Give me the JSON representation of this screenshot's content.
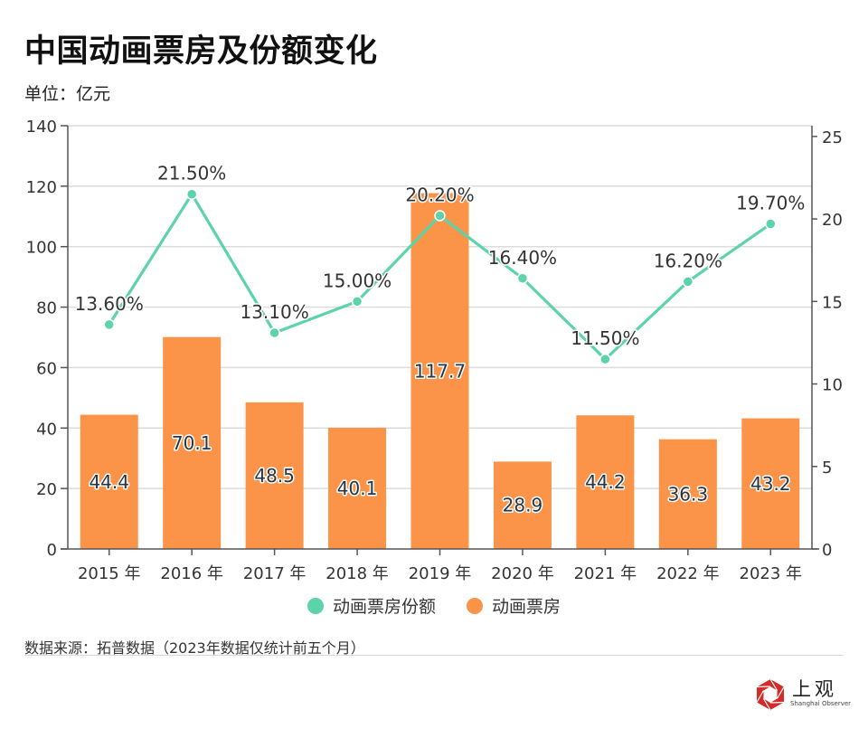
{
  "header": {
    "title": "中国动画票房及份额变化",
    "unit": "单位：亿元"
  },
  "chart_data": {
    "type": "bar+line",
    "title": "中国动画票房及份额变化",
    "subtitle": "单位：亿元",
    "categories": [
      "2015 年",
      "2016 年",
      "2017 年",
      "2018 年",
      "2019 年",
      "2020 年",
      "2021 年",
      "2022 年",
      "2023 年"
    ],
    "series": [
      {
        "name": "动画票房",
        "type": "bar",
        "axis": "left",
        "color": "#fb9348",
        "values": [
          44.4,
          70.1,
          48.5,
          40.1,
          117.7,
          28.9,
          44.2,
          36.3,
          43.2
        ],
        "labels": [
          "44.4",
          "70.1",
          "48.5",
          "40.1",
          "117.7",
          "28.9",
          "44.2",
          "36.3",
          "43.2"
        ]
      },
      {
        "name": "动画票房份额",
        "type": "line",
        "axis": "right",
        "color": "#5dd3a9",
        "values": [
          13.6,
          21.5,
          13.1,
          15.0,
          20.2,
          16.4,
          11.5,
          16.2,
          19.7
        ],
        "labels": [
          "13.60%",
          "21.50%",
          "13.10%",
          "15.00%",
          "20.20%",
          "16.40%",
          "11.50%",
          "16.20%",
          "19.70%"
        ]
      }
    ],
    "left_axis": {
      "ylim": [
        0,
        140
      ],
      "ticks": [
        "0",
        "20",
        "40",
        "60",
        "80",
        "100",
        "120",
        "140"
      ],
      "tick_values": [
        0,
        20,
        40,
        60,
        80,
        100,
        120,
        140
      ]
    },
    "right_axis": {
      "ylim": [
        0,
        25.65
      ],
      "ticks": [
        "0",
        "5",
        "10",
        "15",
        "20",
        "25"
      ],
      "tick_values": [
        0,
        5,
        10,
        15,
        20,
        25
      ]
    },
    "grid": true,
    "legend_position": "bottom-center"
  },
  "legend": [
    {
      "label": "动画票房份额",
      "color": "#5dd3a9"
    },
    {
      "label": "动画票房",
      "color": "#fb9348"
    }
  ],
  "footer": {
    "source": "数据来源：拓普数据（2023年数据仅统计前五个月）",
    "logo_cn": "上观",
    "logo_en": "Shanghai Observer"
  }
}
